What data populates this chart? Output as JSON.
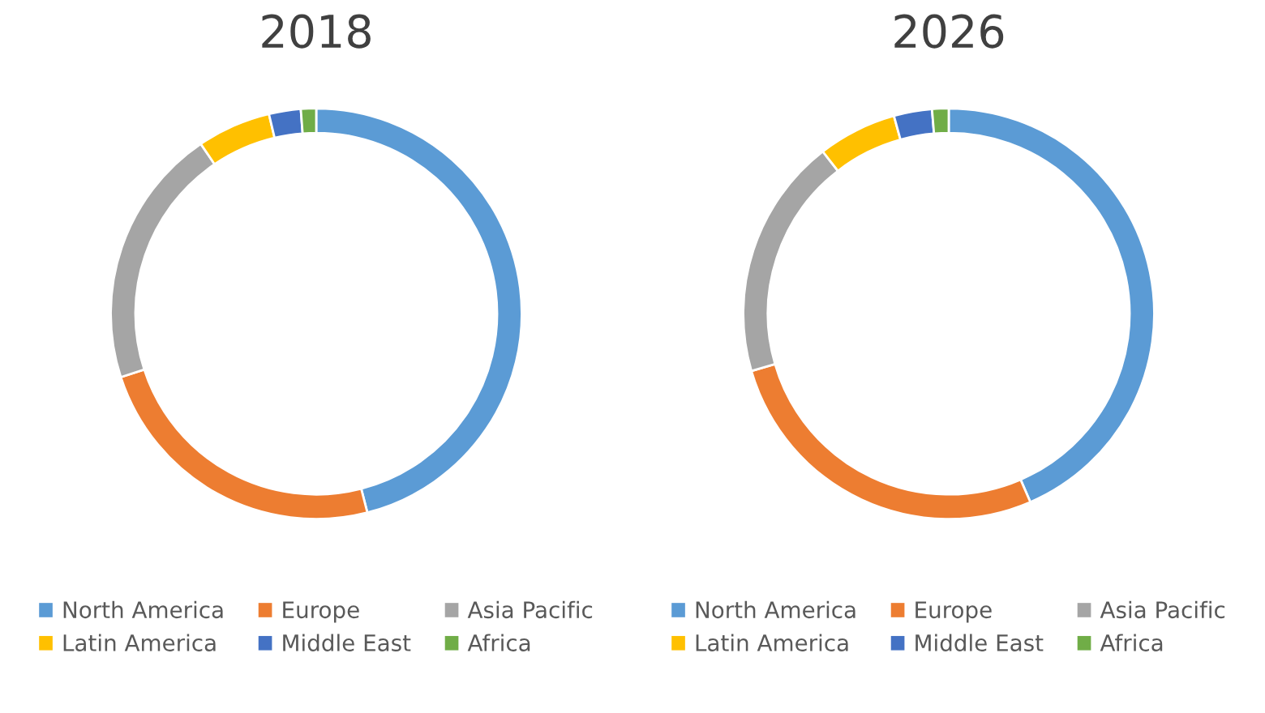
{
  "chart_data": [
    {
      "type": "donut",
      "title": "2018",
      "categories": [
        "North America",
        "Europe",
        "Asia Pacific",
        "Latin America",
        "Middle East",
        "Africa"
      ],
      "values": [
        46,
        24,
        20.5,
        5.8,
        2.5,
        1.2
      ],
      "colors": [
        "#5b9bd5",
        "#ed7d31",
        "#a5a5a5",
        "#ffc000",
        "#4472c4",
        "#70ad47"
      ],
      "legend": "bottom"
    },
    {
      "type": "donut",
      "title": "2026",
      "categories": [
        "North America",
        "Europe",
        "Asia Pacific",
        "Latin America",
        "Middle East",
        "Africa"
      ],
      "values": [
        43.5,
        27,
        19,
        6.2,
        3,
        1.3
      ],
      "colors": [
        "#5b9bd5",
        "#ed7d31",
        "#a5a5a5",
        "#ffc000",
        "#4472c4",
        "#70ad47"
      ],
      "legend": "bottom"
    }
  ]
}
